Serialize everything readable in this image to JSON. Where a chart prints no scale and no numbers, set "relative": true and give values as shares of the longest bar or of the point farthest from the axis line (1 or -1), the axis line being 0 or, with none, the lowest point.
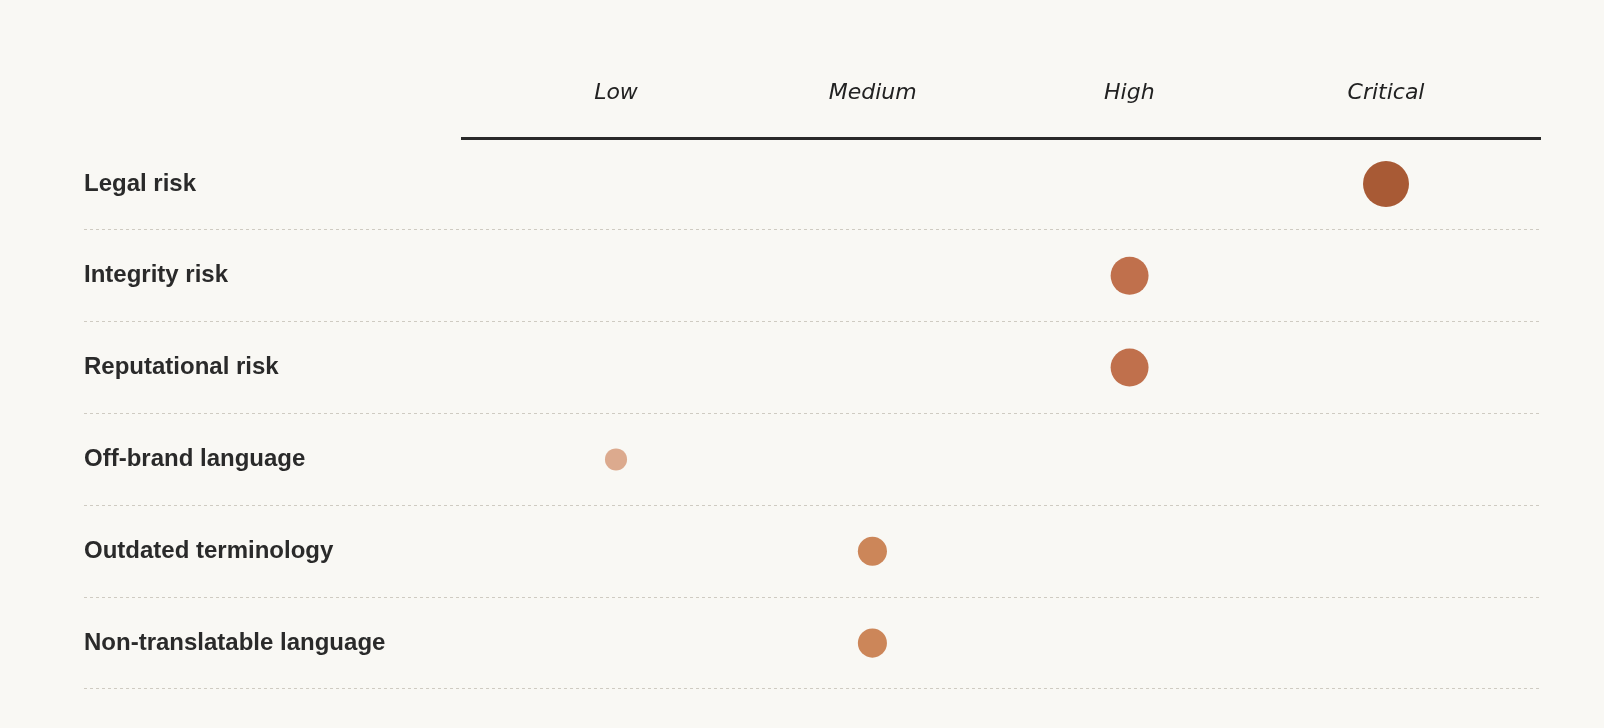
{
  "chart_data": {
    "type": "bubble",
    "orientation": "horizontal",
    "relative": true,
    "categories": [
      "Legal risk",
      "Integrity risk",
      "Reputational risk",
      "Off-brand language",
      "Outdated terminology",
      "Non-translatable language"
    ],
    "values": [
      1,
      0.667,
      0.667,
      0,
      0.333,
      0.333
    ],
    "sizes": [
      1,
      0.68,
      0.68,
      0.23,
      0.4,
      0.4
    ],
    "colors": [
      "#a85a35",
      "#c0704c",
      "#c0704c",
      "#dcaa8e",
      "#cc8659",
      "#cc8659"
    ],
    "annotations": [
      "Low",
      "Medium",
      "High",
      "Critical"
    ],
    "grid": "y"
  }
}
